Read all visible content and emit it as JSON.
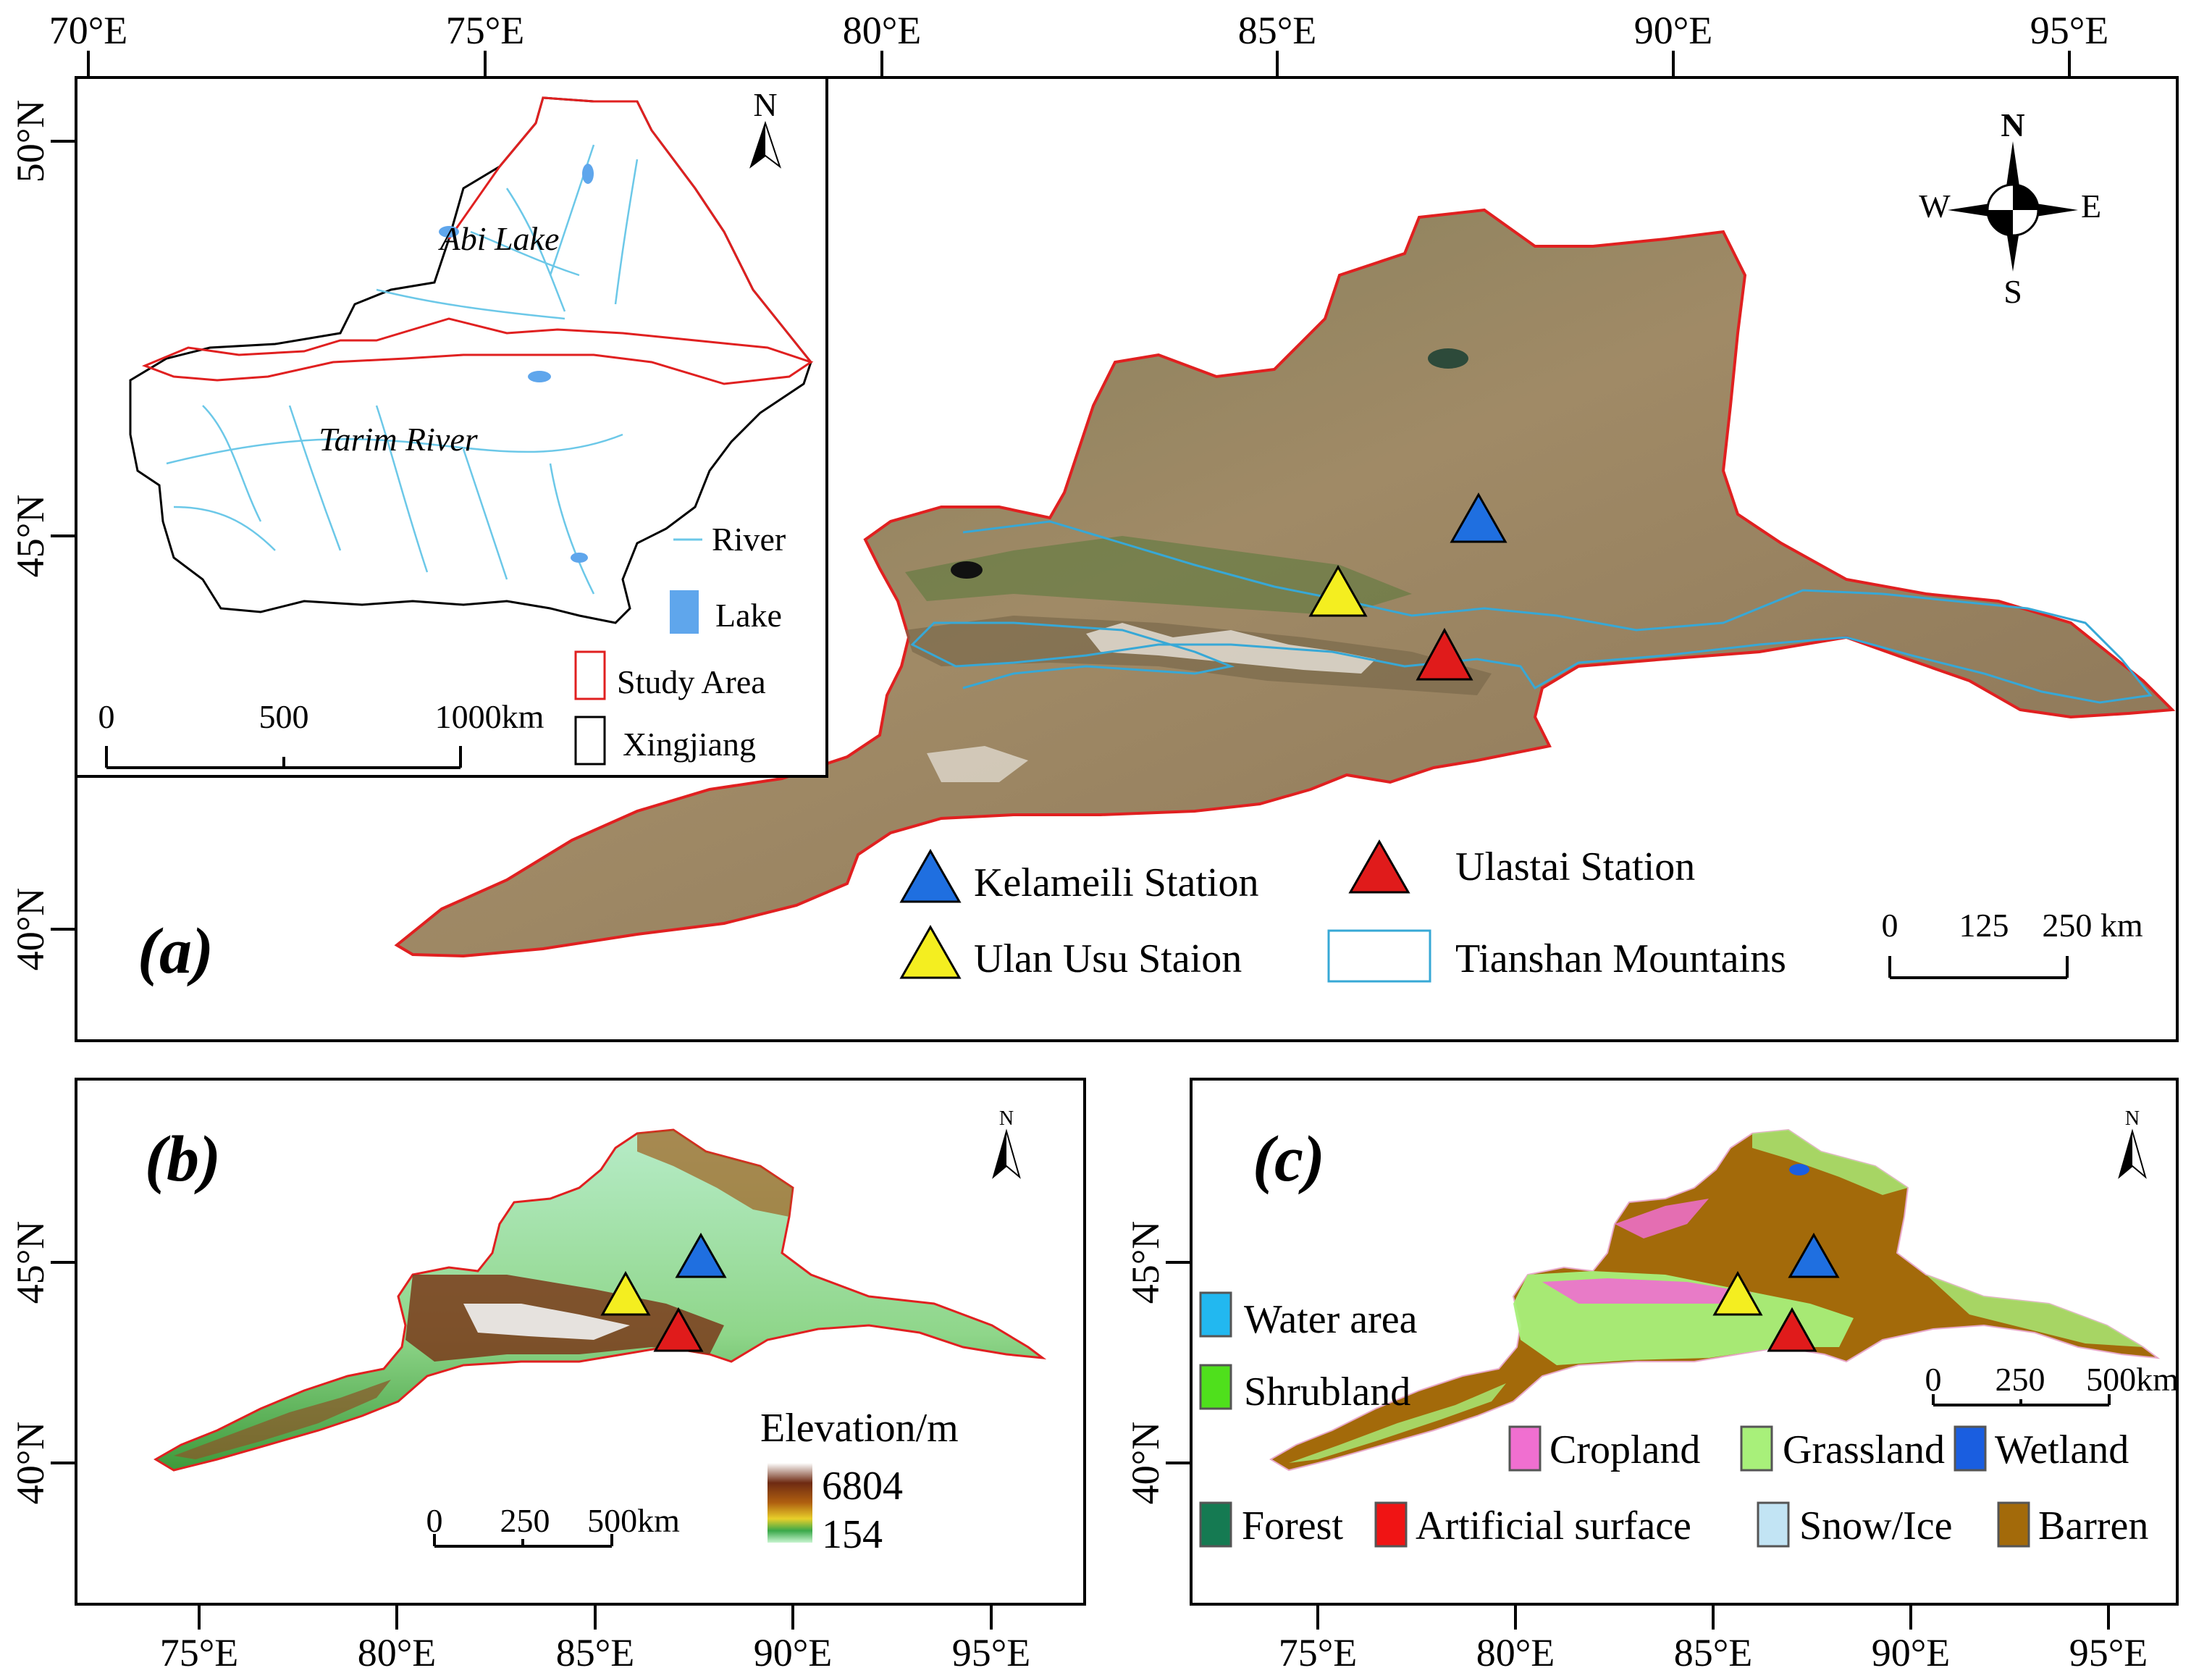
{
  "panel_a": {
    "label": "(a)",
    "top_ticks": [
      "70°E",
      "75°E",
      "80°E",
      "85°E",
      "90°E",
      "95°E"
    ],
    "left_ticks": [
      "50°N",
      "45°N",
      "40°N"
    ],
    "north_arrow": "N",
    "compass": {
      "n": "N",
      "s": "S",
      "e": "E",
      "w": "W"
    },
    "stations": [
      {
        "name": "Kelameili Station",
        "color": "#1f6fe0"
      },
      {
        "name": "Ulastai Station",
        "color": "#e01b1b"
      },
      {
        "name": "Ulan Usu Staion",
        "color": "#f4ee20"
      }
    ],
    "tianshan_label": "Tianshan Mountains",
    "scale": [
      "0",
      "125",
      "250 km"
    ]
  },
  "inset": {
    "abi_lake": "Abi Lake",
    "tarim_river": "Tarim River",
    "north_arrow": "N",
    "legend": {
      "river": "River",
      "lake": "Lake",
      "study_area": "Study Area",
      "xinjiang": "Xingjiang"
    },
    "scale": [
      "0",
      "500",
      "1000km"
    ]
  },
  "panel_b": {
    "label": "(b)",
    "north_arrow": "N",
    "left_ticks": [
      "45°N",
      "40°N"
    ],
    "bottom_ticks": [
      "75°E",
      "80°E",
      "85°E",
      "90°E",
      "95°E"
    ],
    "elevation_title": "Elevation/m",
    "elevation_max": "6804",
    "elevation_min": "154",
    "scale": [
      "0",
      "250",
      "500km"
    ]
  },
  "panel_c": {
    "label": "(c)",
    "north_arrow": "N",
    "left_ticks": [
      "45°N",
      "40°N"
    ],
    "bottom_ticks": [
      "75°E",
      "80°E",
      "85°E",
      "90°E",
      "95°E"
    ],
    "scale": [
      "0",
      "250",
      "500km"
    ],
    "legend": [
      {
        "name": "Water area",
        "color": "#22b8f0"
      },
      {
        "name": "Shrubland",
        "color": "#4fe01c"
      },
      {
        "name": "Cropland",
        "color": "#f06fd0"
      },
      {
        "name": "Grassland",
        "color": "#a8f07a"
      },
      {
        "name": "Wetland",
        "color": "#1a5ee0"
      },
      {
        "name": "Forest",
        "color": "#157a52"
      },
      {
        "name": "Artificial surface",
        "color": "#f01414"
      },
      {
        "name": "Snow/Ice",
        "color": "#c2e4f4"
      },
      {
        "name": "Barren",
        "color": "#a36a0a"
      }
    ]
  }
}
